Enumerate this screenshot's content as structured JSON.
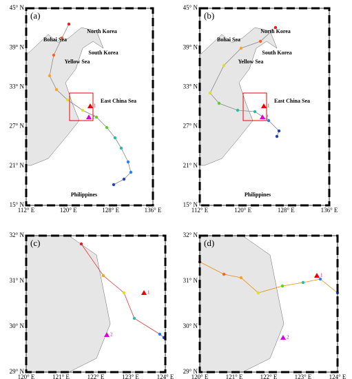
{
  "panels": [
    {
      "label": "(a)",
      "yticks": [
        "45° N",
        "39° N",
        "33° N",
        "27° N",
        "21° N",
        "15° N"
      ],
      "xticks": [
        "112° E",
        "120° E",
        "128° E",
        "136° E"
      ],
      "places": [
        "Bohai Sea",
        "North Korea",
        "South Korea",
        "Yellow Sea",
        "East China Sea",
        "Philippines"
      ],
      "stations": [
        "1",
        "2"
      ]
    },
    {
      "label": "(b)",
      "yticks": [
        "45° N",
        "39° N",
        "33° N",
        "27° N",
        "21° N",
        "15° N"
      ],
      "xticks": [
        "112° E",
        "120° E",
        "128° E",
        "136° E"
      ],
      "places": [
        "Bohai Sea",
        "North Korea",
        "South Korea",
        "Yellow Sea",
        "East China Sea",
        "Philippines"
      ],
      "stations": [
        "1",
        "2"
      ]
    },
    {
      "label": "(c)",
      "yticks": [
        "32° N",
        "31° N",
        "30° N",
        "29° N"
      ],
      "xticks": [
        "120° E",
        "121° E",
        "122° E",
        "123° E",
        "124° E"
      ],
      "stations": [
        "1",
        "2"
      ]
    },
    {
      "label": "(d)",
      "yticks": [
        "32° N",
        "31° N",
        "30° N",
        "29° N"
      ],
      "xticks": [
        "120° E",
        "121° E",
        "122° E",
        "123° E",
        "124° E"
      ],
      "stations": [
        "1",
        "2"
      ]
    }
  ]
}
